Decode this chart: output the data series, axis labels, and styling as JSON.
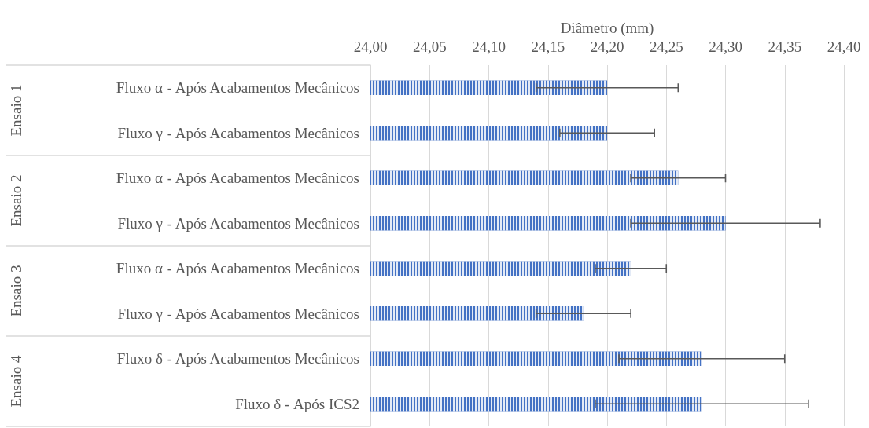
{
  "chart_data": {
    "type": "bar",
    "orientation": "horizontal",
    "xlabel": "Diâmetro (mm)",
    "categories": [
      "Fluxo α - Após Acabamentos Mecânicos",
      "Fluxo γ - Após Acabamentos Mecânicos",
      "Fluxo α - Após Acabamentos Mecânicos",
      "Fluxo γ - Após Acabamentos Mecânicos",
      "Fluxo α - Após Acabamentos Mecânicos",
      "Fluxo γ - Após Acabamentos Mecânicos",
      "Fluxo δ - Após Acabamentos Mecânicos",
      "Fluxo δ - Após ICS2"
    ],
    "values": [
      24.2,
      24.2,
      24.26,
      24.3,
      24.22,
      24.18,
      24.28,
      24.28
    ],
    "errors": [
      0.06,
      0.04,
      0.04,
      0.08,
      0.03,
      0.04,
      0.07,
      0.09
    ],
    "color": "#4472c4",
    "xlim": [
      24.0,
      24.4
    ],
    "xticks": [
      {
        "value": 24.0,
        "label": "24,00"
      },
      {
        "value": 24.05,
        "label": "24,05"
      },
      {
        "value": 24.1,
        "label": "24,10"
      },
      {
        "value": 24.15,
        "label": "24,15"
      },
      {
        "value": 24.2,
        "label": "24,20"
      },
      {
        "value": 24.25,
        "label": "24,25"
      },
      {
        "value": 24.3,
        "label": "24,30"
      },
      {
        "value": 24.35,
        "label": "24,35"
      },
      {
        "value": 24.4,
        "label": "24,40"
      }
    ],
    "grid": "x",
    "annotations": [
      "Ensaio 1",
      "Ensaio 2",
      "Ensaio 3",
      "Ensaio 4"
    ]
  }
}
